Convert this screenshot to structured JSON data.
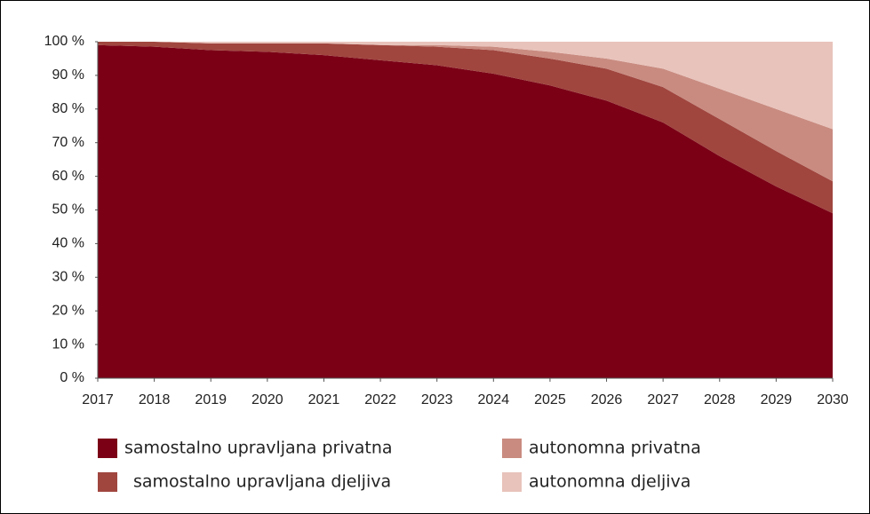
{
  "chart_data": {
    "type": "stacked_area",
    "x": [
      2017,
      2018,
      2019,
      2020,
      2021,
      2022,
      2023,
      2024,
      2025,
      2026,
      2027,
      2028,
      2029,
      2030
    ],
    "xlim": [
      2017,
      2030
    ],
    "xticks": [
      2017,
      2018,
      2019,
      2020,
      2021,
      2022,
      2023,
      2024,
      2025,
      2026,
      2027,
      2028,
      2029,
      2030
    ],
    "ylim": [
      0,
      100
    ],
    "yticks": [
      {
        "value": 0,
        "label": "0 %"
      },
      {
        "value": 10,
        "label": "10 %"
      },
      {
        "value": 20,
        "label": "20 %"
      },
      {
        "value": 30,
        "label": "30 %"
      },
      {
        "value": 40,
        "label": "40 %"
      },
      {
        "value": 50,
        "label": "50 %"
      },
      {
        "value": 60,
        "label": "60 %"
      },
      {
        "value": 70,
        "label": "70 %"
      },
      {
        "value": 80,
        "label": "80 %"
      },
      {
        "value": 90,
        "label": "90 %"
      },
      {
        "value": 100,
        "label": "100 %"
      }
    ],
    "series": [
      {
        "name": "samostalno upravljana privatna",
        "color": "#7b0016",
        "values": [
          99,
          98.5,
          97.5,
          97,
          96,
          94.5,
          93,
          90.5,
          87,
          82.5,
          76,
          66,
          57,
          49
        ]
      },
      {
        "name": "samostalno upravljana djeljiva",
        "color": "#a0463f",
        "values": [
          1,
          1.5,
          2,
          2.5,
          3.5,
          4.5,
          5.5,
          7,
          8,
          9.5,
          10.5,
          11,
          10.5,
          9.5
        ]
      },
      {
        "name": "autonomna privatna",
        "color": "#c98b80",
        "values": [
          0,
          0,
          0,
          0,
          0,
          0,
          0.5,
          1,
          2,
          3,
          5.5,
          9,
          12.5,
          15.5
        ]
      },
      {
        "name": "autonomna djeljiva",
        "color": "#e8c3bb",
        "values": [
          0,
          0,
          0.5,
          0.5,
          0.5,
          1,
          1,
          1.5,
          3,
          5,
          8,
          14,
          20,
          26
        ]
      }
    ]
  }
}
